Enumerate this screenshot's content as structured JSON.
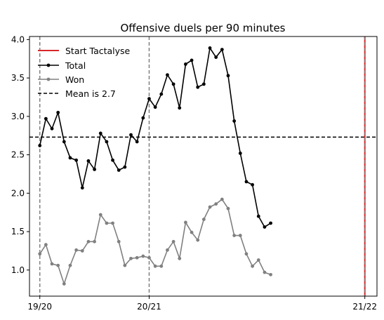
{
  "chart_data": {
    "type": "line",
    "title": "Offensive duels per 90 minutes",
    "xlabel": "",
    "ylabel": "",
    "x_range": [
      -1.7,
      55.5
    ],
    "ylim": [
      0.66,
      4.04
    ],
    "yticks": [
      1.0,
      1.5,
      2.0,
      2.5,
      3.0,
      3.5,
      4.0
    ],
    "xticks": [
      {
        "x": 0,
        "label": "19/20"
      },
      {
        "x": 18,
        "label": "20/21"
      },
      {
        "x": 53.5,
        "label": "21/22"
      }
    ],
    "season_lines_x": [
      0,
      18
    ],
    "start_line_x": 53.5,
    "mean": 2.73,
    "grid": false,
    "legend_position": "top-left",
    "legend": [
      "Start Tactalyse",
      "Total",
      "Won",
      "Mean is 2.7"
    ],
    "colors": {
      "total": "#000000",
      "won": "#808080",
      "mean": "#000000",
      "season": "#808080",
      "start": "#d62728"
    },
    "series": [
      {
        "name": "Total",
        "values": [
          2.62,
          2.97,
          2.84,
          3.05,
          2.67,
          2.46,
          2.43,
          2.07,
          2.42,
          2.31,
          2.78,
          2.67,
          2.43,
          2.3,
          2.34,
          2.76,
          2.67,
          2.98,
          3.23,
          3.12,
          3.29,
          3.54,
          3.42,
          3.11,
          3.68,
          3.73,
          3.38,
          3.42,
          3.89,
          3.77,
          3.87,
          3.53,
          2.94,
          2.52,
          2.15,
          2.11,
          1.7,
          1.56,
          1.61
        ]
      },
      {
        "name": "Won",
        "values": [
          1.21,
          1.33,
          1.08,
          1.06,
          0.82,
          1.06,
          1.26,
          1.25,
          1.37,
          1.37,
          1.72,
          1.61,
          1.61,
          1.37,
          1.06,
          1.15,
          1.16,
          1.18,
          1.16,
          1.05,
          1.05,
          1.26,
          1.37,
          1.15,
          1.62,
          1.49,
          1.39,
          1.66,
          1.82,
          1.86,
          1.92,
          1.8,
          1.45,
          1.45,
          1.21,
          1.05,
          1.13,
          0.97,
          0.94
        ]
      }
    ]
  }
}
